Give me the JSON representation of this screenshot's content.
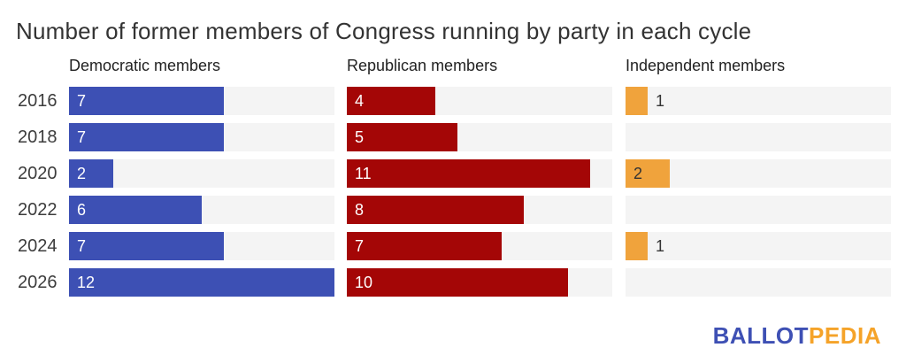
{
  "title": "Number of former members of Congress running by party in each cycle",
  "chart_data": {
    "type": "bar",
    "orientation": "horizontal",
    "title": "Number of former members of Congress running by party in each cycle",
    "categories": [
      "2016",
      "2018",
      "2020",
      "2022",
      "2024",
      "2026"
    ],
    "series": [
      {
        "key": "democratic",
        "name": "Democratic members",
        "color": "#3D50B4",
        "value_label_color": "#ffffff",
        "values": [
          7,
          7,
          2,
          6,
          7,
          12
        ]
      },
      {
        "key": "republican",
        "name": "Republican members",
        "color": "#A40606",
        "value_label_color": "#ffffff",
        "values": [
          4,
          5,
          11,
          8,
          7,
          10
        ]
      },
      {
        "key": "independent",
        "name": "Independent members",
        "color": "#F0A33C",
        "value_label_color": "#333333",
        "values": [
          1,
          0,
          2,
          0,
          1,
          0
        ]
      }
    ],
    "xmax": 12,
    "track_color": "#F4F4F4",
    "grid": false,
    "legend_position": "column-headers",
    "value_labels": true,
    "outside_label_color": "#333333"
  },
  "logo": {
    "part1": "BALLOT",
    "part2": "PEDIA",
    "color1": "#3E50B4",
    "color2": "#F5A329"
  }
}
